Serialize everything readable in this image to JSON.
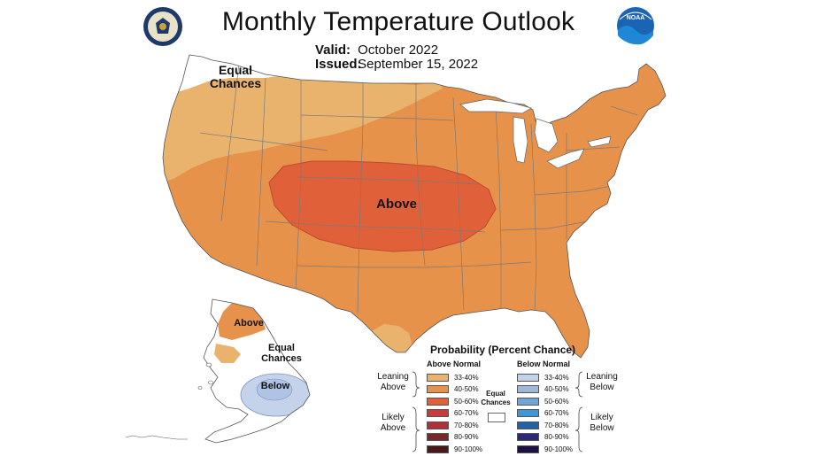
{
  "header": {
    "title": "Monthly Temperature Outlook",
    "valid_label": "Valid:",
    "valid_value": "October 2022",
    "issued_label": "Issued:",
    "issued_value": "September 15, 2022"
  },
  "logos": {
    "left": "department-of-commerce-seal-icon",
    "right": "noaa-logo-icon",
    "noaa_text": "NOAA"
  },
  "map_labels": {
    "conus_equal": "Equal Chances",
    "conus_above": "Above",
    "alaska_above": "Above",
    "alaska_equal": "Equal Chances",
    "alaska_below": "Below"
  },
  "legend": {
    "title": "Probability (Percent Chance)",
    "above_header": "Above Normal",
    "below_header": "Below Normal",
    "leaning_above": "Leaning Above",
    "likely_above": "Likely Above",
    "leaning_below": "Leaning Below",
    "likely_below": "Likely Below",
    "equal_chances": "Equal Chances",
    "above_items": [
      {
        "range": "33-40%",
        "color": "#E9B36E"
      },
      {
        "range": "40-50%",
        "color": "#E6924B"
      },
      {
        "range": "50-60%",
        "color": "#E0603A"
      },
      {
        "range": "60-70%",
        "color": "#C93A3A"
      },
      {
        "range": "70-80%",
        "color": "#B0303A"
      },
      {
        "range": "80-90%",
        "color": "#7A2828"
      },
      {
        "range": "90-100%",
        "color": "#4A1818"
      }
    ],
    "below_items": [
      {
        "range": "33-40%",
        "color": "#C5D3EA"
      },
      {
        "range": "40-50%",
        "color": "#9EB8DB"
      },
      {
        "range": "50-60%",
        "color": "#72A4D6"
      },
      {
        "range": "60-70%",
        "color": "#3C96D8"
      },
      {
        "range": "70-80%",
        "color": "#2260A8"
      },
      {
        "range": "80-90%",
        "color": "#2A2A7A"
      },
      {
        "range": "90-100%",
        "color": "#1E1040"
      }
    ]
  },
  "colors": {
    "equal_chances": "#FFFFFF",
    "above_33_40": "#E9B36E",
    "above_40_50": "#E6924B",
    "above_50_60": "#E0603A",
    "below_33_40": "#C5D3EA",
    "state_lines": "#7a7a7a"
  }
}
